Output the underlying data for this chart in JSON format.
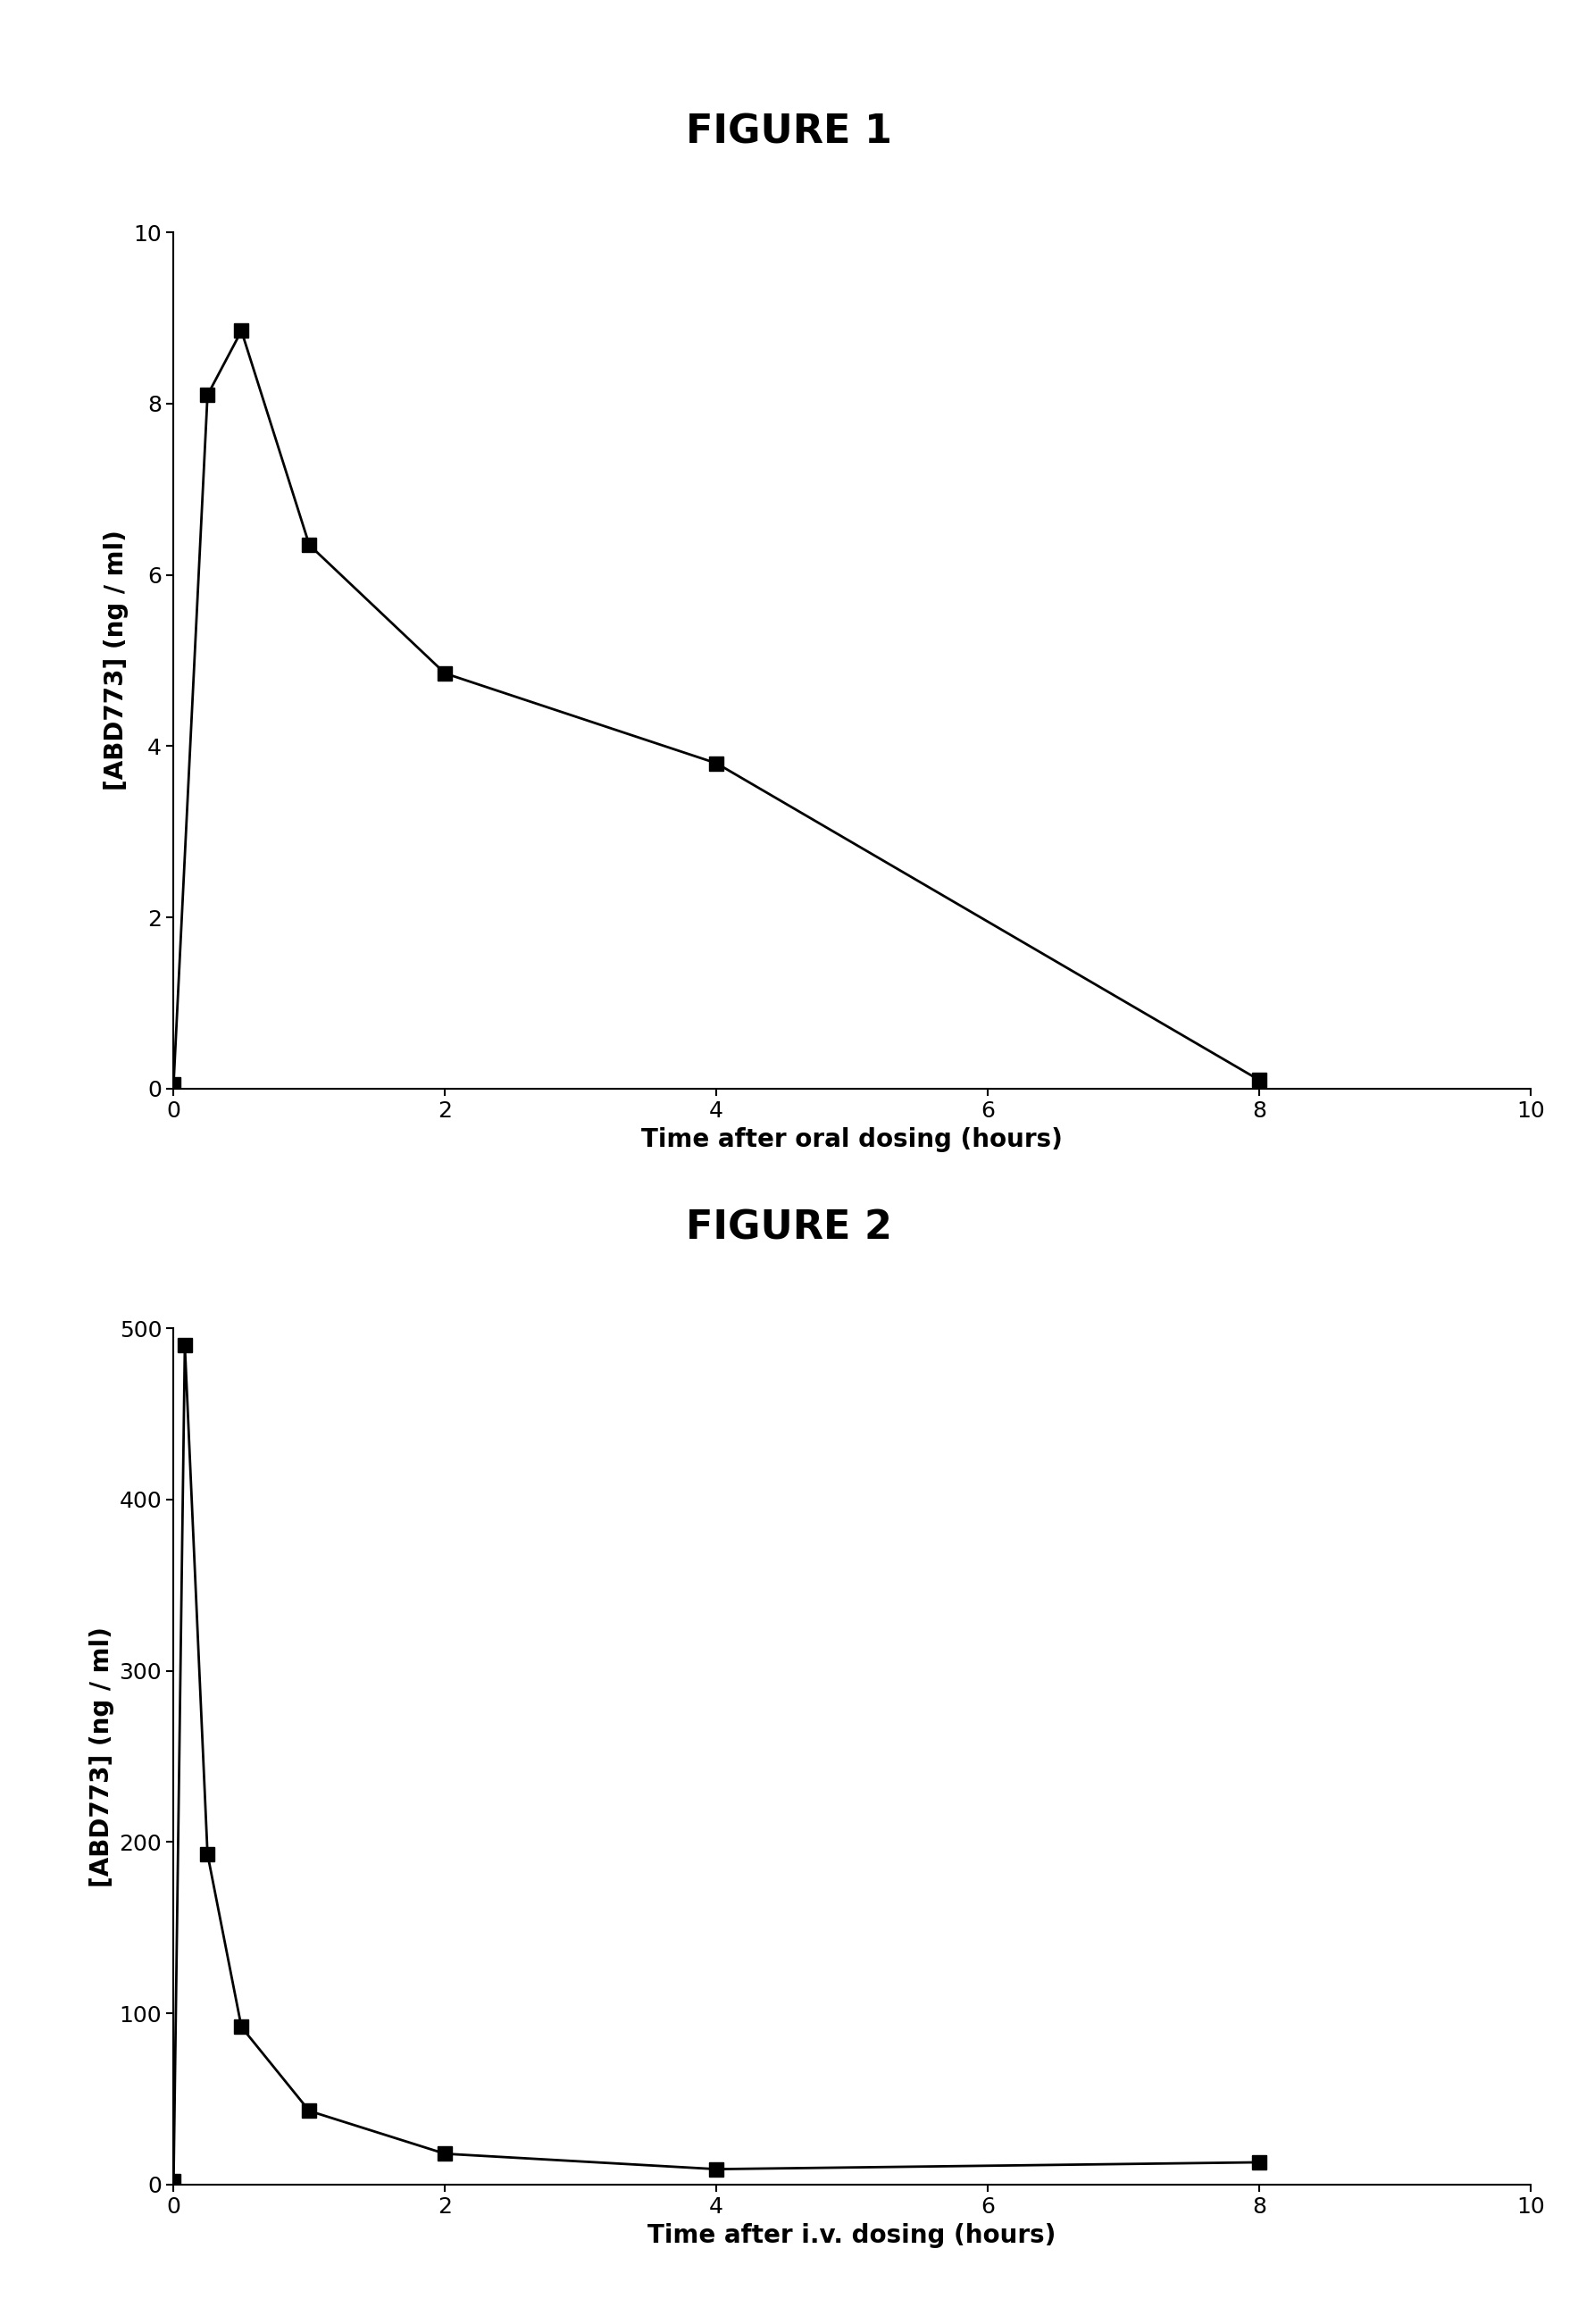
{
  "fig1": {
    "title": "FIGURE 1",
    "x": [
      0,
      0.25,
      0.5,
      1.0,
      2.0,
      4.0,
      8.0
    ],
    "y": [
      0.05,
      8.1,
      8.85,
      6.35,
      4.85,
      3.8,
      0.1
    ],
    "xlabel": "Time after oral dosing (hours)",
    "ylabel": "[ABD773] (ng / ml)",
    "xlim": [
      0,
      10
    ],
    "ylim": [
      0,
      10
    ],
    "xticks": [
      0,
      2,
      4,
      6,
      8,
      10
    ],
    "yticks": [
      0,
      2,
      4,
      6,
      8,
      10
    ]
  },
  "fig2": {
    "title": "FIGURE 2",
    "x": [
      0,
      0.083,
      0.25,
      0.5,
      1.0,
      2.0,
      4.0,
      8.0
    ],
    "y": [
      2,
      490,
      193,
      92,
      43,
      18,
      9,
      13
    ],
    "xlabel": "Time after i.v. dosing (hours)",
    "ylabel": "[ABD773] (ng / ml)",
    "xlim": [
      0,
      10
    ],
    "ylim": [
      0,
      500
    ],
    "xticks": [
      0,
      2,
      4,
      6,
      8,
      10
    ],
    "yticks": [
      0,
      100,
      200,
      300,
      400,
      500
    ]
  },
  "line_color": "#000000",
  "marker": "s",
  "marker_size": 11,
  "line_width": 2.0,
  "title_fontsize": 32,
  "label_fontsize": 20,
  "tick_fontsize": 18,
  "background_color": "#ffffff"
}
